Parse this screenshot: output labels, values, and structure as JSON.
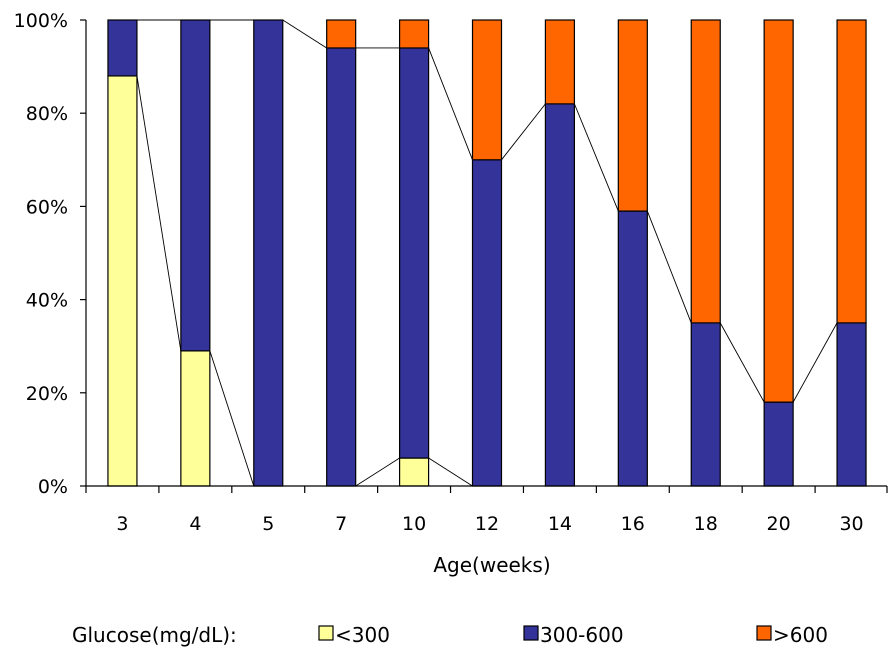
{
  "chart_data": {
    "type": "bar",
    "stacked": true,
    "percent": true,
    "categories": [
      "3",
      "4",
      "5",
      "7",
      "10",
      "12",
      "14",
      "16",
      "18",
      "20",
      "30"
    ],
    "series": [
      {
        "name": "<300",
        "color": "#ffff99",
        "values": [
          88,
          29,
          0,
          0,
          6,
          0,
          0,
          0,
          0,
          0,
          0
        ]
      },
      {
        "name": "300-600",
        "color": "#333399",
        "values": [
          12,
          71,
          100,
          94,
          88,
          70,
          82,
          59,
          35,
          18,
          35
        ]
      },
      {
        "name": ">600",
        "color": "#ff6600",
        "values": [
          0,
          0,
          0,
          6,
          6,
          30,
          18,
          41,
          65,
          82,
          65
        ]
      }
    ],
    "series_lines": true,
    "xlabel": "Age(weeks)",
    "ylabel": "",
    "ylim": [
      0,
      100
    ],
    "yticks": [
      "0%",
      "20%",
      "40%",
      "60%",
      "80%",
      "100%"
    ],
    "grid": false,
    "legend": {
      "title": "Glucose(mg/dL):",
      "placement": "bottom"
    }
  }
}
